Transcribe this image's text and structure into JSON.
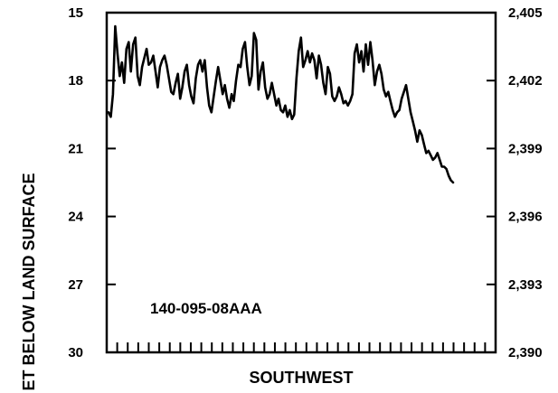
{
  "chart_data": {
    "type": "line",
    "title": "",
    "xlabel": "SOUTHWEST",
    "ylabel_left": "ET BELOW LAND SURFACE",
    "ylabel_right": "",
    "annotation": "140-095-08AAA",
    "left_axis": {
      "ticks": [
        15,
        18,
        21,
        24,
        27,
        30
      ],
      "tick_labels": [
        "15",
        "18",
        "21",
        "24",
        "27",
        "30"
      ],
      "ylim": [
        15,
        30
      ],
      "inverted": true
    },
    "right_axis": {
      "ticks": [
        2405,
        2402,
        2399,
        2396,
        2393,
        2390
      ],
      "tick_labels": [
        "2,405",
        "2,402",
        "2,399",
        "2,396",
        "2,393",
        "2,390"
      ],
      "ylim": [
        2390,
        2405
      ]
    },
    "x_tick_count": 36,
    "grid": false,
    "legend": "none",
    "line_color": "#000000",
    "series": [
      {
        "values": [
          19.4,
          19.6,
          18.6,
          15.6,
          16.8,
          17.8,
          17.2,
          18.1,
          16.6,
          16.3,
          17.6,
          16.4,
          16.1,
          17.8,
          18.2,
          17.4,
          17.0,
          16.6,
          17.3,
          17.2,
          16.9,
          17.6,
          18.3,
          17.4,
          17.1,
          16.9,
          17.3,
          17.9,
          18.5,
          18.6,
          18.1,
          17.7,
          18.8,
          18.3,
          17.6,
          17.3,
          18.2,
          18.7,
          19.0,
          17.9,
          17.3,
          17.1,
          17.6,
          17.1,
          18.3,
          19.1,
          19.4,
          18.7,
          18.0,
          17.4,
          18.0,
          18.6,
          18.2,
          18.8,
          19.2,
          18.6,
          18.9,
          18.0,
          17.3,
          17.4,
          16.6,
          16.3,
          17.4,
          18.2,
          17.8,
          15.9,
          16.2,
          18.4,
          17.6,
          17.2,
          18.3,
          18.8,
          18.6,
          18.1,
          18.6,
          19.1,
          18.8,
          19.3,
          19.4,
          19.1,
          19.6,
          19.3,
          19.7,
          19.5,
          17.9,
          16.7,
          16.1,
          17.4,
          17.1,
          16.7,
          17.2,
          16.8,
          17.1,
          17.9,
          16.9,
          17.3,
          18.1,
          18.6,
          17.4,
          17.7,
          18.7,
          18.9,
          18.7,
          18.3,
          18.6,
          19.0,
          18.9,
          19.1,
          18.9,
          18.6,
          16.8,
          16.4,
          17.2,
          16.7,
          17.6,
          16.4,
          17.3,
          16.3,
          17.1,
          18.2,
          17.6,
          17.3,
          17.7,
          18.4,
          18.7,
          18.5,
          18.9,
          19.3,
          19.6,
          19.4,
          19.3,
          18.8,
          18.5,
          18.2,
          18.8,
          19.4,
          19.8,
          20.2,
          20.7,
          20.2,
          20.4,
          20.8,
          21.2,
          21.1,
          21.3,
          21.5,
          21.4,
          21.2,
          21.5,
          21.8,
          21.8,
          21.9,
          22.2,
          22.4,
          22.5
        ]
      }
    ]
  }
}
